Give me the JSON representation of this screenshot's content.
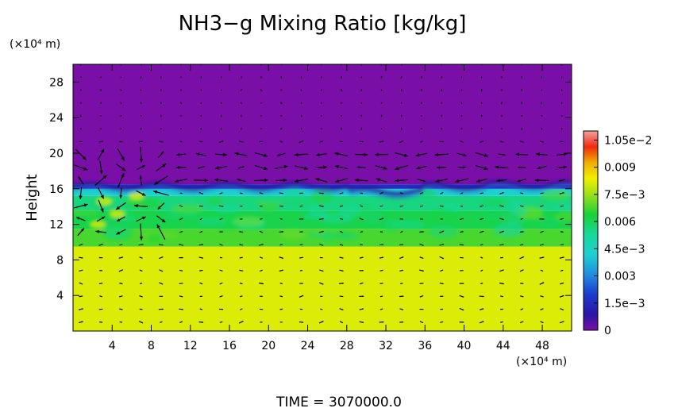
{
  "chart_data": {
    "type": "heatmap",
    "title": "NH3−g Mixing Ratio [kg/kg]",
    "ylabel": "Height",
    "y_unit": "(×10⁴ m)",
    "x_unit": "(×10⁴ m)",
    "footer": "TIME  =  3070000.0",
    "xlim": [
      0,
      51
    ],
    "ylim": [
      0,
      30
    ],
    "x_ticks": [
      4,
      8,
      12,
      16,
      20,
      24,
      28,
      32,
      36,
      40,
      44,
      48
    ],
    "y_ticks": [
      4,
      8,
      12,
      16,
      20,
      24,
      28
    ],
    "colorbar": {
      "min": 0,
      "max": 0.011,
      "tick_values": [
        0,
        0.0015,
        0.003,
        0.0045,
        0.006,
        0.0075,
        0.009,
        0.0105
      ],
      "tick_labels": [
        "0",
        "1.5e−3",
        "0.003",
        "4.5e−3",
        "0.006",
        "7.5e−3",
        "0.009",
        "1.05e−2"
      ]
    },
    "layers": [
      {
        "from_height": 0,
        "to_height": 9.5,
        "value": 0.0082
      },
      {
        "from_height": 9.5,
        "to_height": 11.5,
        "value": 0.0068
      },
      {
        "from_height": 11.5,
        "to_height": 13.5,
        "value": 0.0062
      },
      {
        "from_height": 13.5,
        "to_height": 15.2,
        "value": 0.0056
      },
      {
        "from_height": 15.2,
        "to_height": 16.0,
        "value": 0.0042
      },
      {
        "from_height": 16.0,
        "to_height": 16.5,
        "value": 0.0016
      },
      {
        "from_height": 16.5,
        "to_height": 30,
        "value": 0.0
      }
    ],
    "features": {
      "tropopause_height": 16.3,
      "vector_field": true
    }
  }
}
